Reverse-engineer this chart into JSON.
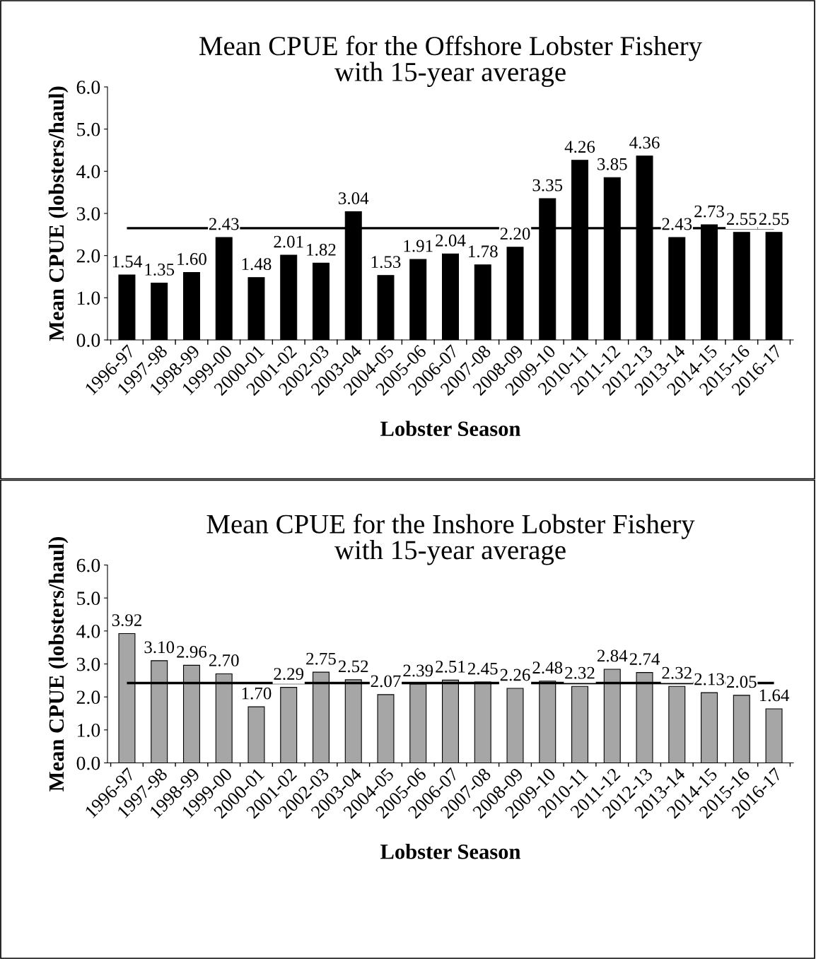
{
  "chart_data": [
    {
      "type": "bar",
      "title": "Mean CPUE for the Offshore Lobster Fishery\nwith 15-year average",
      "xlabel": "Lobster Season",
      "ylabel": "Mean CPUE (lobsters/haul)",
      "categories": [
        "1996-97",
        "1997-98",
        "1998-99",
        "1999-00",
        "2000-01",
        "2001-02",
        "2002-03",
        "2003-04",
        "2004-05",
        "2005-06",
        "2006-07",
        "2007-08",
        "2008-09",
        "2009-10",
        "2010-11",
        "2011-12",
        "2012-13",
        "2013-14",
        "2014-15",
        "2015-16",
        "2016-17"
      ],
      "values": [
        1.54,
        1.35,
        1.6,
        2.43,
        1.48,
        2.01,
        1.82,
        3.04,
        1.53,
        1.91,
        2.04,
        1.78,
        2.2,
        3.35,
        4.26,
        3.85,
        4.36,
        2.43,
        2.73,
        2.55,
        2.55
      ],
      "value_labels": [
        "1.54",
        "1.35",
        "1.60",
        "2.43",
        "1.48",
        "2.01",
        "1.82",
        "3.04",
        "1.53",
        "1.91",
        "2.04",
        "1.78",
        "2.20",
        "3.35",
        "4.26",
        "3.85",
        "4.36",
        "2.43",
        "2.73",
        "2.55",
        "2.55"
      ],
      "color": "#000000",
      "ylim": [
        0,
        6
      ],
      "yticks": [
        {
          "value": 0,
          "label": "0.0"
        },
        {
          "value": 1,
          "label": "1.0"
        },
        {
          "value": 2,
          "label": "2.0"
        },
        {
          "value": 3,
          "label": "3.0"
        },
        {
          "value": 4,
          "label": "4.0"
        },
        {
          "value": 5,
          "label": "5.0"
        },
        {
          "value": 6,
          "label": "6.0"
        }
      ],
      "ref_lines": [
        {
          "axis": "y",
          "value": 2.65,
          "color": "#000000"
        }
      ],
      "grid": false,
      "legend": false
    },
    {
      "type": "bar",
      "title": "Mean CPUE for the Inshore Lobster Fishery\nwith 15-year average",
      "xlabel": "Lobster Season",
      "ylabel": "Mean CPUE (lobsters/haul)",
      "categories": [
        "1996-97",
        "1997-98",
        "1998-99",
        "1999-00",
        "2000-01",
        "2001-02",
        "2002-03",
        "2003-04",
        "2004-05",
        "2005-06",
        "2006-07",
        "2007-08",
        "2008-09",
        "2009-10",
        "2010-11",
        "2011-12",
        "2012-13",
        "2013-14",
        "2014-15",
        "2015-16",
        "2016-17"
      ],
      "values": [
        3.92,
        3.1,
        2.96,
        2.7,
        1.7,
        2.29,
        2.75,
        2.52,
        2.07,
        2.39,
        2.51,
        2.45,
        2.26,
        2.48,
        2.32,
        2.84,
        2.74,
        2.32,
        2.13,
        2.05,
        1.64
      ],
      "value_labels": [
        "3.92",
        "3.10",
        "2.96",
        "2.70",
        "1.70",
        "2.29",
        "2.75",
        "2.52",
        "2.07",
        "2.39",
        "2.51",
        "2.45",
        "2.26",
        "2.48",
        "2.32",
        "2.84",
        "2.74",
        "2.32",
        "2.13",
        "2.05",
        "1.64"
      ],
      "color": "#a6a6a6",
      "ylim": [
        0,
        6
      ],
      "yticks": [
        {
          "value": 0,
          "label": "0.0"
        },
        {
          "value": 1,
          "label": "1.0"
        },
        {
          "value": 2,
          "label": "2.0"
        },
        {
          "value": 3,
          "label": "3.0"
        },
        {
          "value": 4,
          "label": "4.0"
        },
        {
          "value": 5,
          "label": "5.0"
        },
        {
          "value": 6,
          "label": "6.0"
        }
      ],
      "ref_lines": [
        {
          "axis": "y",
          "value": 2.42,
          "color": "#000000"
        }
      ],
      "grid": false,
      "legend": false
    }
  ]
}
